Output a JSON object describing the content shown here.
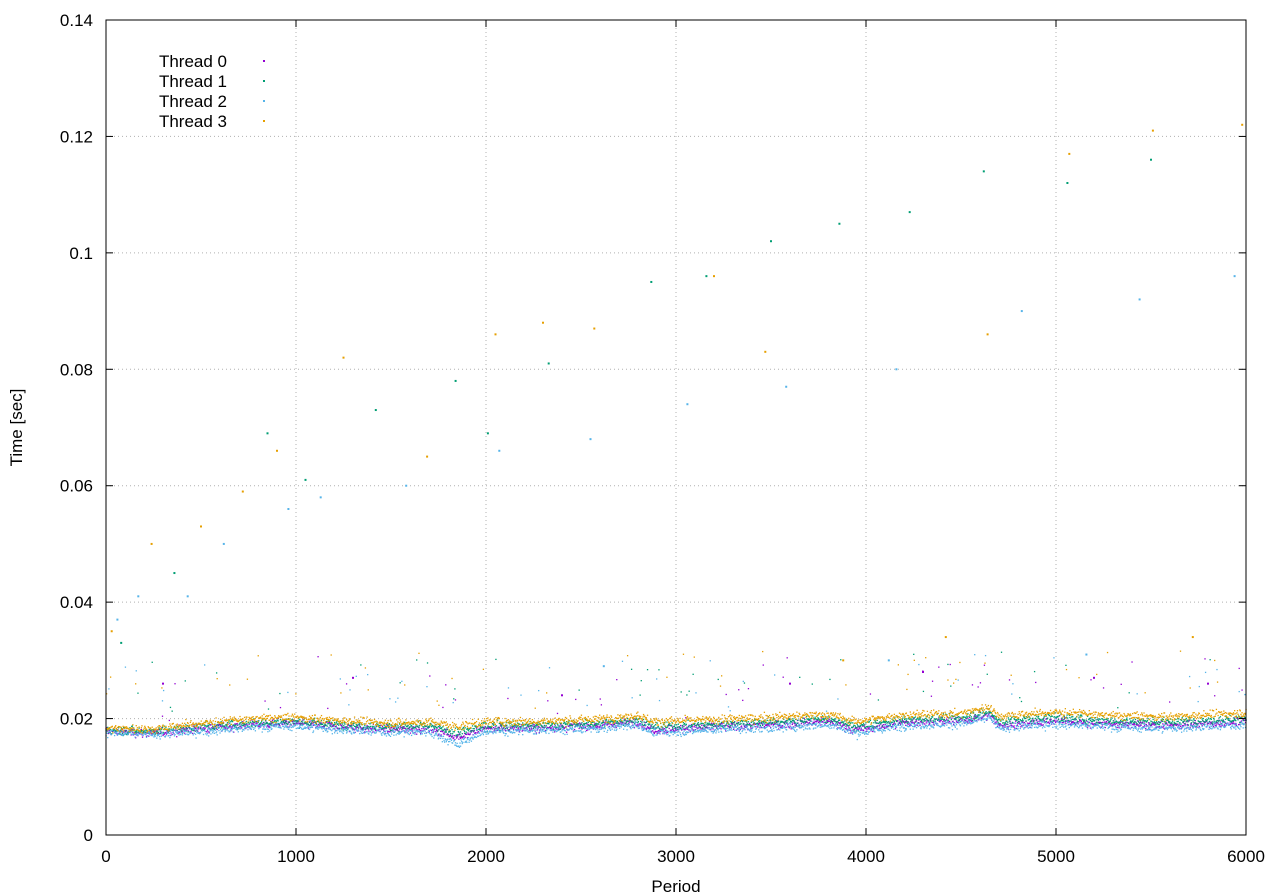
{
  "chart_data": {
    "type": "scatter",
    "title": "",
    "xlabel": "Period",
    "ylabel": "Time [sec]",
    "xlim": [
      0,
      6000
    ],
    "ylim": [
      0,
      0.14
    ],
    "xticks": [
      0,
      1000,
      2000,
      3000,
      4000,
      5000,
      6000
    ],
    "yticks": [
      0,
      0.02,
      0.04,
      0.06,
      0.08,
      0.1,
      0.12,
      0.14
    ],
    "xtick_labels": [
      "0",
      "1000",
      "2000",
      "3000",
      "4000",
      "5000",
      "6000"
    ],
    "ytick_labels": [
      "0",
      "0.02",
      "0.04",
      "0.06",
      "0.08",
      "0.1",
      "0.12",
      "0.14"
    ],
    "grid": true,
    "legend_position": "top-left",
    "series": [
      {
        "name": "Thread 0",
        "color": "#9400d3",
        "baseline": [
          [
            0,
            0.0178
          ],
          [
            250,
            0.0175
          ],
          [
            500,
            0.0183
          ],
          [
            800,
            0.019
          ],
          [
            1000,
            0.0192
          ],
          [
            1200,
            0.0186
          ],
          [
            1500,
            0.0181
          ],
          [
            1700,
            0.0183
          ],
          [
            1850,
            0.0168
          ],
          [
            2000,
            0.0183
          ],
          [
            2300,
            0.0184
          ],
          [
            2600,
            0.0188
          ],
          [
            2800,
            0.0194
          ],
          [
            2880,
            0.018
          ],
          [
            3200,
            0.0186
          ],
          [
            3500,
            0.0189
          ],
          [
            3800,
            0.0195
          ],
          [
            3950,
            0.018
          ],
          [
            4200,
            0.0193
          ],
          [
            4500,
            0.0196
          ],
          [
            4650,
            0.0206
          ],
          [
            4700,
            0.0188
          ],
          [
            5000,
            0.0196
          ],
          [
            5300,
            0.019
          ],
          [
            5600,
            0.0188
          ],
          [
            6000,
            0.0194
          ]
        ],
        "outliers": [
          [
            300,
            0.026
          ],
          [
            1300,
            0.027
          ],
          [
            2400,
            0.024
          ],
          [
            3600,
            0.026
          ],
          [
            4300,
            0.028
          ],
          [
            5200,
            0.027
          ],
          [
            5800,
            0.026
          ]
        ]
      },
      {
        "name": "Thread 1",
        "color": "#009e73",
        "baseline": [
          [
            0,
            0.018
          ],
          [
            250,
            0.0178
          ],
          [
            500,
            0.0186
          ],
          [
            800,
            0.0193
          ],
          [
            1000,
            0.0195
          ],
          [
            1200,
            0.019
          ],
          [
            1500,
            0.0186
          ],
          [
            1700,
            0.0187
          ],
          [
            1850,
            0.0175
          ],
          [
            2000,
            0.0188
          ],
          [
            2300,
            0.0188
          ],
          [
            2600,
            0.0192
          ],
          [
            2800,
            0.0198
          ],
          [
            2880,
            0.0186
          ],
          [
            3200,
            0.019
          ],
          [
            3500,
            0.0194
          ],
          [
            3800,
            0.0199
          ],
          [
            3950,
            0.0186
          ],
          [
            4200,
            0.0198
          ],
          [
            4500,
            0.0201
          ],
          [
            4650,
            0.0212
          ],
          [
            4700,
            0.0195
          ],
          [
            5000,
            0.0202
          ],
          [
            5300,
            0.0196
          ],
          [
            5600,
            0.0194
          ],
          [
            6000,
            0.02
          ]
        ],
        "outliers": [
          [
            80,
            0.033
          ],
          [
            360,
            0.045
          ],
          [
            850,
            0.069
          ],
          [
            1420,
            0.073
          ],
          [
            1840,
            0.078
          ],
          [
            2330,
            0.081
          ],
          [
            2870,
            0.095
          ],
          [
            3500,
            0.102
          ],
          [
            3860,
            0.105
          ],
          [
            4230,
            0.107
          ],
          [
            5060,
            0.112
          ],
          [
            5500,
            0.116
          ],
          [
            4620,
            0.114
          ],
          [
            1050,
            0.061
          ],
          [
            2010,
            0.069
          ],
          [
            3160,
            0.096
          ]
        ]
      },
      {
        "name": "Thread 2",
        "color": "#56b4e9",
        "baseline": [
          [
            0,
            0.0176
          ],
          [
            250,
            0.0172
          ],
          [
            500,
            0.0178
          ],
          [
            800,
            0.0185
          ],
          [
            1000,
            0.0187
          ],
          [
            1200,
            0.0181
          ],
          [
            1500,
            0.0176
          ],
          [
            1700,
            0.0178
          ],
          [
            1850,
            0.0155
          ],
          [
            2000,
            0.0178
          ],
          [
            2300,
            0.0179
          ],
          [
            2600,
            0.0183
          ],
          [
            2800,
            0.0189
          ],
          [
            2880,
            0.0175
          ],
          [
            3200,
            0.0181
          ],
          [
            3500,
            0.0184
          ],
          [
            3800,
            0.019
          ],
          [
            3950,
            0.0175
          ],
          [
            4200,
            0.0188
          ],
          [
            4500,
            0.0191
          ],
          [
            4650,
            0.0201
          ],
          [
            4700,
            0.0183
          ],
          [
            5000,
            0.0191
          ],
          [
            5300,
            0.0185
          ],
          [
            5600,
            0.0183
          ],
          [
            6000,
            0.0189
          ]
        ],
        "outliers": [
          [
            60,
            0.037
          ],
          [
            170,
            0.041
          ],
          [
            430,
            0.041
          ],
          [
            620,
            0.05
          ],
          [
            960,
            0.056
          ],
          [
            1130,
            0.058
          ],
          [
            1580,
            0.06
          ],
          [
            2070,
            0.066
          ],
          [
            2550,
            0.068
          ],
          [
            3060,
            0.074
          ],
          [
            3580,
            0.077
          ],
          [
            4160,
            0.08
          ],
          [
            4820,
            0.09
          ],
          [
            5440,
            0.092
          ],
          [
            5940,
            0.096
          ],
          [
            2620,
            0.029
          ],
          [
            4120,
            0.03
          ],
          [
            5160,
            0.031
          ]
        ]
      },
      {
        "name": "Thread 3",
        "color": "#e69f00",
        "baseline": [
          [
            0,
            0.0184
          ],
          [
            250,
            0.0182
          ],
          [
            500,
            0.0192
          ],
          [
            800,
            0.02
          ],
          [
            1000,
            0.0202
          ],
          [
            1200,
            0.0197
          ],
          [
            1500,
            0.0192
          ],
          [
            1700,
            0.0194
          ],
          [
            1850,
            0.0186
          ],
          [
            2000,
            0.0195
          ],
          [
            2300,
            0.0195
          ],
          [
            2600,
            0.0199
          ],
          [
            2800,
            0.0206
          ],
          [
            2880,
            0.0195
          ],
          [
            3200,
            0.0198
          ],
          [
            3500,
            0.0202
          ],
          [
            3800,
            0.0207
          ],
          [
            3950,
            0.0195
          ],
          [
            4200,
            0.0206
          ],
          [
            4500,
            0.0209
          ],
          [
            4650,
            0.022
          ],
          [
            4700,
            0.0204
          ],
          [
            5000,
            0.0211
          ],
          [
            5300,
            0.0205
          ],
          [
            5600,
            0.0203
          ],
          [
            6000,
            0.021
          ]
        ],
        "outliers": [
          [
            30,
            0.035
          ],
          [
            240,
            0.05
          ],
          [
            500,
            0.053
          ],
          [
            720,
            0.059
          ],
          [
            900,
            0.066
          ],
          [
            1250,
            0.082
          ],
          [
            1690,
            0.065
          ],
          [
            2050,
            0.086
          ],
          [
            2300,
            0.088
          ],
          [
            2570,
            0.087
          ],
          [
            3200,
            0.096
          ],
          [
            3470,
            0.083
          ],
          [
            4640,
            0.086
          ],
          [
            5070,
            0.117
          ],
          [
            5510,
            0.121
          ],
          [
            5980,
            0.122
          ],
          [
            4420,
            0.034
          ],
          [
            3880,
            0.03
          ],
          [
            5720,
            0.034
          ]
        ]
      }
    ]
  }
}
